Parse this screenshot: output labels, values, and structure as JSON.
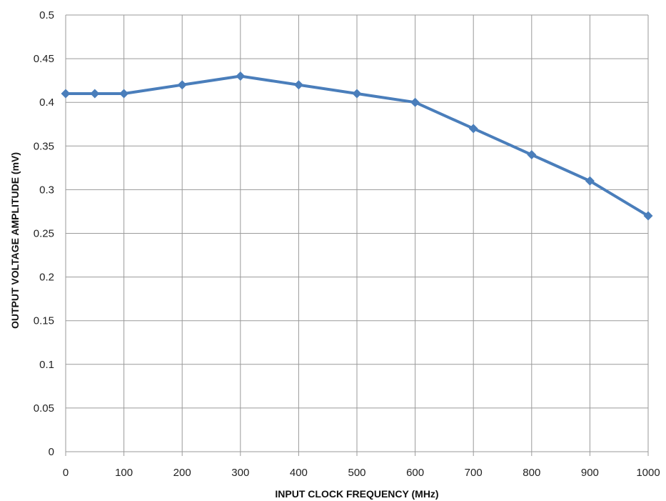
{
  "chart_data": {
    "type": "line",
    "title": "",
    "xlabel": "INPUT  CLOCK FREQUENCY  (MHz)",
    "ylabel": "OUTPUT  VOLTAGE AMPLITUDE  (mV)",
    "x": [
      0,
      50,
      100,
      200,
      300,
      400,
      500,
      600,
      700,
      800,
      900,
      1000
    ],
    "series": [
      {
        "name": "",
        "values": [
          0.41,
          0.41,
          0.41,
          0.42,
          0.43,
          0.42,
          0.41,
          0.4,
          0.37,
          0.34,
          0.31,
          0.27
        ],
        "color": "#4a7ebb",
        "marker": "diamond"
      }
    ],
    "xlim": [
      0,
      1000
    ],
    "ylim": [
      0,
      0.5
    ],
    "x_ticks": [
      "0",
      "100",
      "200",
      "300",
      "400",
      "500",
      "600",
      "700",
      "800",
      "900",
      "1000"
    ],
    "x_tick_values": [
      0,
      100,
      200,
      300,
      400,
      500,
      600,
      700,
      800,
      900,
      1000
    ],
    "y_ticks": [
      "0",
      "0.05",
      "0.1",
      "0.15",
      "0.2",
      "0.25",
      "0.3",
      "0.35",
      "0.4",
      "0.45",
      "0.5"
    ],
    "y_tick_values": [
      0,
      0.05,
      0.1,
      0.15,
      0.2,
      0.25,
      0.3,
      0.35,
      0.4,
      0.45,
      0.5
    ],
    "grid": true,
    "legend": "none"
  }
}
